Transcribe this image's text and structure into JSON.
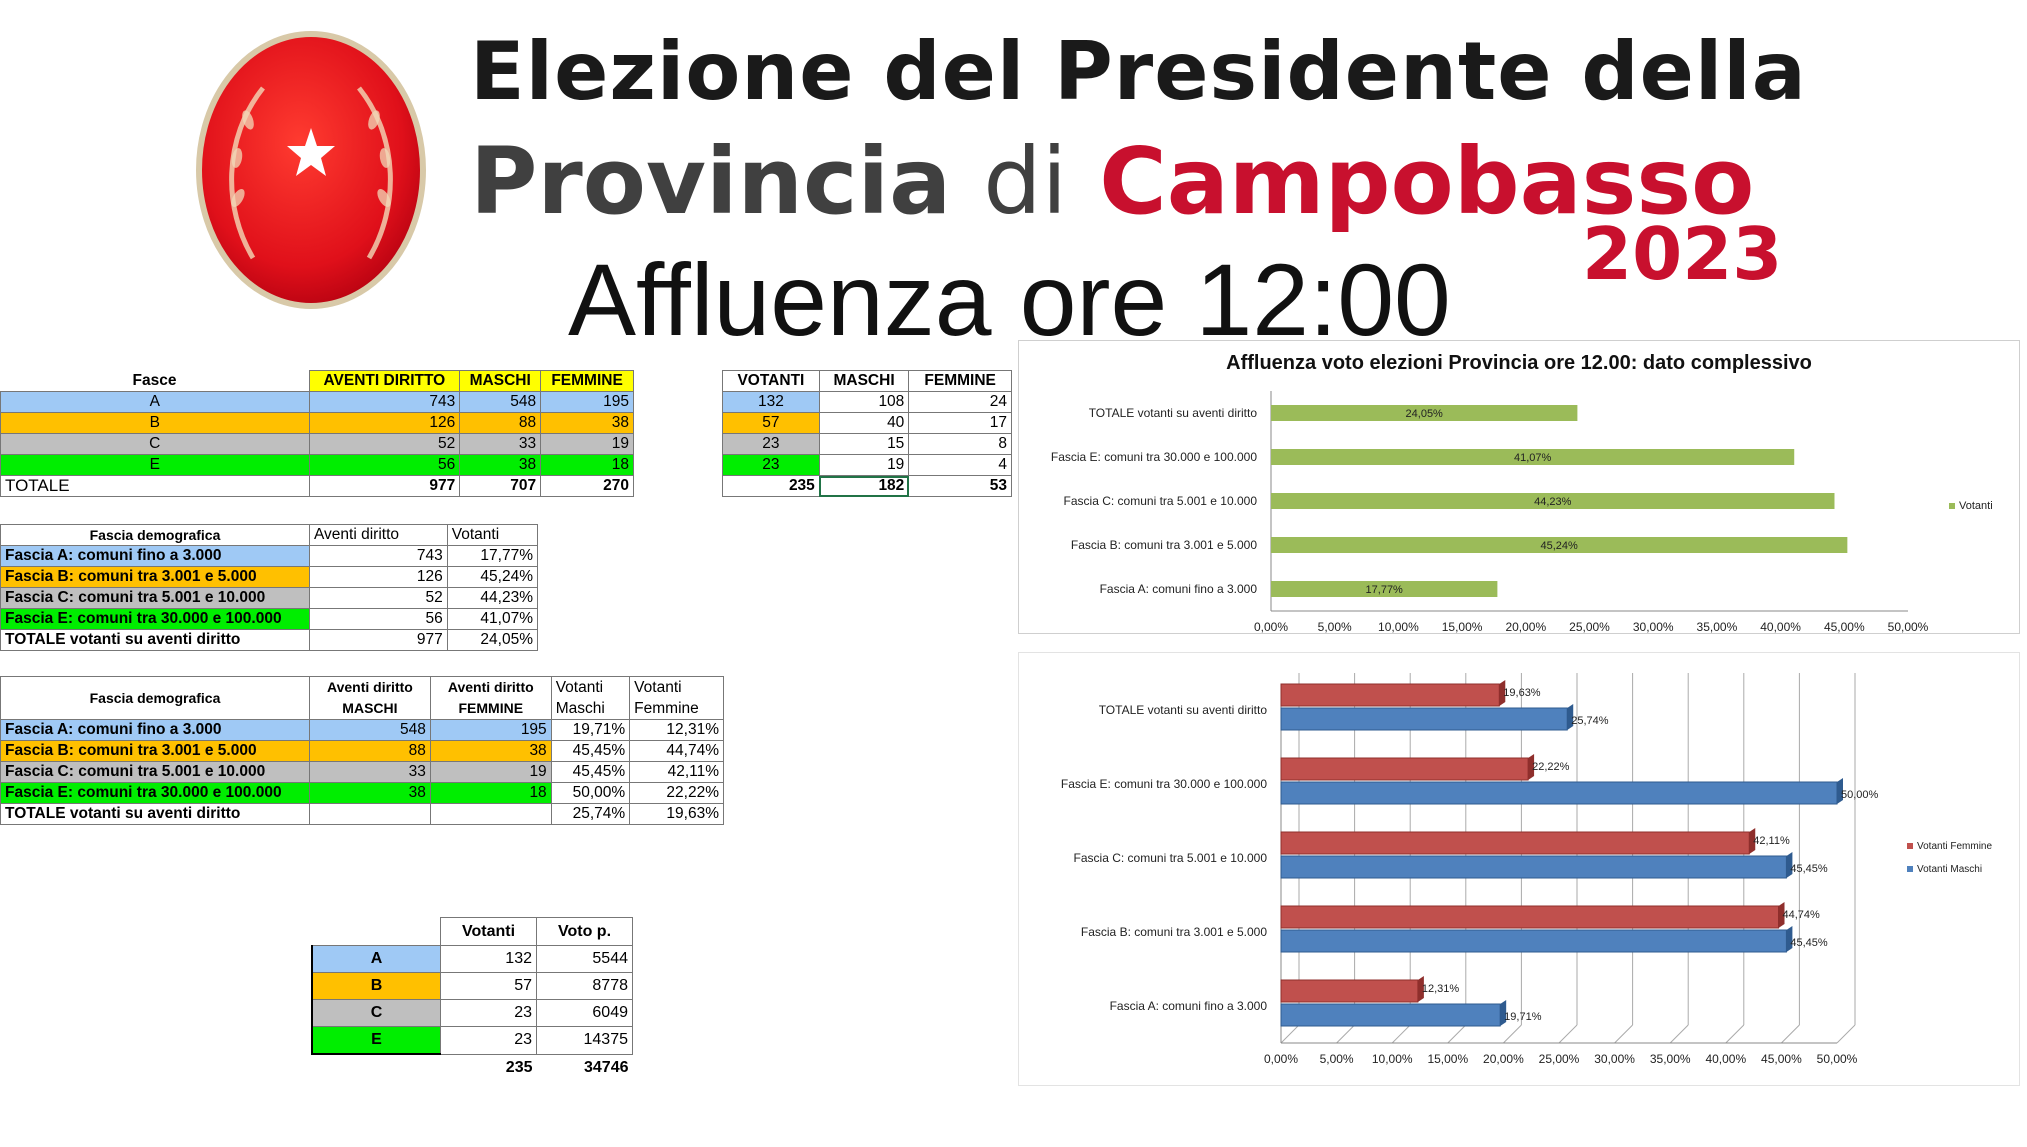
{
  "header": {
    "title_line1": "Elezione del Presidente della",
    "title_prov": "Provincia",
    "title_di": "di",
    "title_camp": "Campobasso",
    "year": "2023",
    "subtitle": "Affluenza ore 12:00"
  },
  "colors": {
    "blue": "#9fc9f5",
    "orange": "#ffc000",
    "grey": "#bfbfbf",
    "green": "#00ee00",
    "yellow": "#ffff00",
    "chart_green": "#9bbb59",
    "chart_red": "#c0504d",
    "chart_blue": "#4f81bd"
  },
  "table1": {
    "headers": [
      "Fasce",
      "AVENTI DIRITTO",
      "MASCHI",
      "FEMMINE"
    ],
    "rows": [
      {
        "fascia": "A",
        "aventi": "743",
        "maschi": "548",
        "femmine": "195"
      },
      {
        "fascia": "B",
        "aventi": "126",
        "maschi": "88",
        "femmine": "38"
      },
      {
        "fascia": "C",
        "aventi": "52",
        "maschi": "33",
        "femmine": "19"
      },
      {
        "fascia": "E",
        "aventi": "56",
        "maschi": "38",
        "femmine": "18"
      }
    ],
    "total": {
      "label": "TOTALE",
      "aventi": "977",
      "maschi": "707",
      "femmine": "270"
    }
  },
  "table2": {
    "headers": [
      "VOTANTI",
      "MASCHI",
      "FEMMINE"
    ],
    "rows": [
      {
        "votanti": "132",
        "maschi": "108",
        "femmine": "24"
      },
      {
        "votanti": "57",
        "maschi": "40",
        "femmine": "17"
      },
      {
        "votanti": "23",
        "maschi": "15",
        "femmine": "8"
      },
      {
        "votanti": "23",
        "maschi": "19",
        "femmine": "4"
      }
    ],
    "total": {
      "votanti": "235",
      "maschi": "182",
      "femmine": "53"
    }
  },
  "table3": {
    "headers": [
      "Fascia demografica",
      "Aventi diritto",
      "Votanti"
    ],
    "rows": [
      {
        "label": "Fascia A: comuni fino a 3.000",
        "aventi": "743",
        "votanti": "17,77%"
      },
      {
        "label": "Fascia B: comuni tra 3.001 e 5.000",
        "aventi": "126",
        "votanti": "45,24%"
      },
      {
        "label": "Fascia C: comuni tra 5.001 e 10.000",
        "aventi": "52",
        "votanti": "44,23%"
      },
      {
        "label": "Fascia E: comuni tra 30.000 e 100.000",
        "aventi": "56",
        "votanti": "41,07%"
      },
      {
        "label": "TOTALE votanti su aventi diritto",
        "aventi": "977",
        "votanti": "24,05%"
      }
    ]
  },
  "table4": {
    "headers": [
      "Fascia demografica",
      "Aventi diritto MASCHI",
      "Aventi diritto FEMMINE",
      "Votanti Maschi",
      "Votanti Femmine"
    ],
    "h1": "Aventi diritto",
    "h1b": "MASCHI",
    "h2": "Aventi diritto",
    "h2b": "FEMMINE",
    "h3": "Votanti",
    "h3b": "Maschi",
    "h4": "Votanti",
    "h4b": "Femmine",
    "rows": [
      {
        "label": "Fascia A: comuni fino a 3.000",
        "am": "548",
        "af": "195",
        "vm": "19,71%",
        "vf": "12,31%"
      },
      {
        "label": "Fascia B: comuni tra 3.001 e 5.000",
        "am": "88",
        "af": "38",
        "vm": "45,45%",
        "vf": "44,74%"
      },
      {
        "label": "Fascia C: comuni tra 5.001 e 10.000",
        "am": "33",
        "af": "19",
        "vm": "45,45%",
        "vf": "42,11%"
      },
      {
        "label": "Fascia E: comuni tra 30.000 e 100.000",
        "am": "38",
        "af": "18",
        "vm": "50,00%",
        "vf": "22,22%"
      },
      {
        "label": "TOTALE votanti su aventi diritto",
        "am": "",
        "af": "",
        "vm": "25,74%",
        "vf": "19,63%"
      }
    ]
  },
  "table5": {
    "headers": [
      "Votanti",
      "Voto p."
    ],
    "rows": [
      {
        "fascia": "A",
        "votanti": "132",
        "voto": "5544"
      },
      {
        "fascia": "B",
        "votanti": "57",
        "voto": "8778"
      },
      {
        "fascia": "C",
        "votanti": "23",
        "voto": "6049"
      },
      {
        "fascia": "E",
        "votanti": "23",
        "voto": "14375"
      }
    ],
    "total": {
      "votanti": "235",
      "voto": "34746"
    }
  },
  "chart_data": [
    {
      "type": "bar",
      "orientation": "horizontal",
      "title": "Affluenza voto elezioni Provincia ore 12.00: dato complessivo",
      "categories": [
        "TOTALE votanti su aventi diritto",
        "Fascia E: comuni tra 30.000 e 100.000",
        "Fascia C: comuni tra 5.001 e 10.000",
        "Fascia B: comuni tra 3.001 e 5.000",
        "Fascia A: comuni fino a 3.000"
      ],
      "series": [
        {
          "name": "Votanti",
          "values": [
            24.05,
            41.07,
            44.23,
            45.24,
            17.77
          ],
          "labels": [
            "24,05%",
            "41,07%",
            "44,23%",
            "45,24%",
            "17,77%"
          ]
        }
      ],
      "xlim": [
        0,
        50
      ],
      "ticks": [
        "0,00%",
        "5,00%",
        "10,00%",
        "15,00%",
        "20,00%",
        "25,00%",
        "30,00%",
        "35,00%",
        "40,00%",
        "45,00%",
        "50,00%"
      ],
      "legend": "right"
    },
    {
      "type": "bar",
      "orientation": "horizontal",
      "categories": [
        "TOTALE votanti su aventi diritto",
        "Fascia E: comuni tra 30.000 e 100.000",
        "Fascia C: comuni tra 5.001 e 10.000",
        "Fascia B: comuni tra 3.001 e 5.000",
        "Fascia A: comuni fino a 3.000"
      ],
      "series": [
        {
          "name": "Votanti Femmine",
          "values": [
            19.63,
            22.22,
            42.11,
            44.74,
            12.31
          ],
          "labels": [
            "19,63%",
            "22,22%",
            "42,11%",
            "44,74%",
            "12,31%"
          ]
        },
        {
          "name": "Votanti Maschi",
          "values": [
            25.74,
            50.0,
            45.45,
            45.45,
            19.71
          ],
          "labels": [
            "25,74%",
            "50,00%",
            "45,45%",
            "45,45%",
            "19,71%"
          ]
        }
      ],
      "xlim": [
        0,
        50
      ],
      "ticks": [
        "0,00%",
        "5,00%",
        "10,00%",
        "15,00%",
        "20,00%",
        "25,00%",
        "30,00%",
        "35,00%",
        "40,00%",
        "45,00%",
        "50,00%"
      ],
      "legend": "right"
    }
  ]
}
